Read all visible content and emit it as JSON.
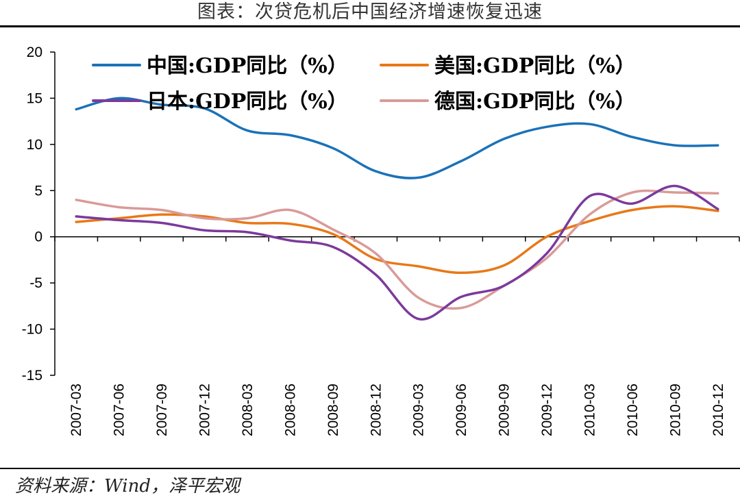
{
  "header": {
    "title": "图表：次贷危机后中国经济增速恢复迅速"
  },
  "footer": {
    "source": "资料来源：Wind，泽平宏观"
  },
  "chart_data": {
    "type": "line",
    "title": "",
    "xlabel": "",
    "ylabel": "",
    "ylim": [
      -15,
      20
    ],
    "yticks": [
      -15,
      -10,
      -5,
      0,
      5,
      10,
      15,
      20
    ],
    "grid": false,
    "legend_position": "top",
    "categories": [
      "2007-03",
      "2007-06",
      "2007-09",
      "2007-12",
      "2008-03",
      "2008-06",
      "2008-09",
      "2008-12",
      "2009-03",
      "2009-06",
      "2009-09",
      "2009-12",
      "2010-03",
      "2010-06",
      "2010-09",
      "2010-12"
    ],
    "series": [
      {
        "name": "中国:GDP同比（%）",
        "color": "#1a72b8",
        "values": [
          13.8,
          15.0,
          14.3,
          13.9,
          11.5,
          11.0,
          9.6,
          7.1,
          6.4,
          8.2,
          10.6,
          11.9,
          12.2,
          10.8,
          9.9,
          9.9
        ]
      },
      {
        "name": "美国:GDP同比（%）",
        "color": "#e87817",
        "values": [
          1.6,
          2.0,
          2.4,
          2.2,
          1.5,
          1.4,
          0.3,
          -2.4,
          -3.2,
          -3.9,
          -3.1,
          0.0,
          1.7,
          2.9,
          3.3,
          2.8
        ]
      },
      {
        "name": "日本:GDP同比（%）",
        "color": "#7b3a9c",
        "values": [
          2.2,
          1.8,
          1.5,
          0.7,
          0.5,
          -0.4,
          -1.1,
          -4.1,
          -8.9,
          -6.5,
          -5.3,
          -1.8,
          4.4,
          3.6,
          5.5,
          3.0
        ]
      },
      {
        "name": "德国:GDP同比（%）",
        "color": "#d99a98",
        "values": [
          4.0,
          3.2,
          2.9,
          2.0,
          2.0,
          2.9,
          0.8,
          -1.8,
          -6.6,
          -7.7,
          -5.3,
          -2.3,
          2.4,
          4.8,
          4.8,
          4.7
        ]
      }
    ]
  }
}
